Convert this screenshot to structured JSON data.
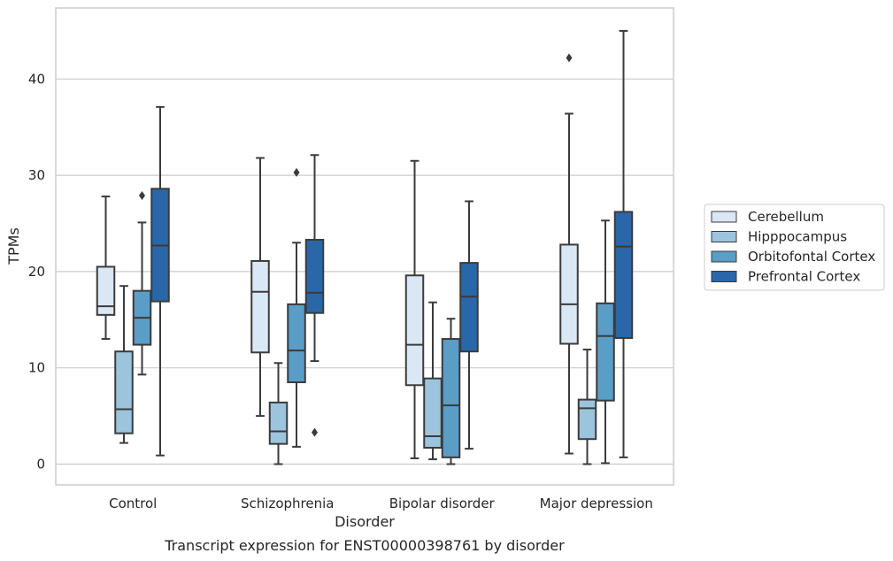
{
  "chart_data": {
    "type": "box",
    "xlabel": "Disorder",
    "ylabel": "TPMs",
    "caption": "Transcript expression for ENST00000398761 by disorder",
    "ylim": [
      -2.2,
      47.5
    ],
    "yticks": [
      0,
      10,
      20,
      30,
      40
    ],
    "grid": "horizontal",
    "legend_position": "right",
    "categories": [
      "Control",
      "Schizophrenia",
      "Bipolar disorder",
      "Major depression"
    ],
    "series": [
      {
        "name": "Cerebellum",
        "color": "#dae7f4",
        "boxes": [
          {
            "whisker_low": 13.0,
            "q1": 15.5,
            "median": 16.4,
            "q3": 20.5,
            "whisker_high": 27.8,
            "outliers": []
          },
          {
            "whisker_low": 5.0,
            "q1": 11.6,
            "median": 17.9,
            "q3": 21.1,
            "whisker_high": 31.8,
            "outliers": []
          },
          {
            "whisker_low": 0.6,
            "q1": 8.2,
            "median": 12.4,
            "q3": 19.6,
            "whisker_high": 31.5,
            "outliers": []
          },
          {
            "whisker_low": 1.1,
            "q1": 12.5,
            "median": 16.6,
            "q3": 22.8,
            "whisker_high": 36.4,
            "outliers": [
              42.2
            ]
          }
        ]
      },
      {
        "name": "Hipppocampus",
        "color": "#9cc4dd",
        "boxes": [
          {
            "whisker_low": 2.2,
            "q1": 3.2,
            "median": 5.7,
            "q3": 11.7,
            "whisker_high": 18.5,
            "outliers": []
          },
          {
            "whisker_low": 0.0,
            "q1": 2.1,
            "median": 3.4,
            "q3": 6.4,
            "whisker_high": 10.5,
            "outliers": []
          },
          {
            "whisker_low": 0.5,
            "q1": 1.7,
            "median": 2.9,
            "q3": 8.9,
            "whisker_high": 16.8,
            "outliers": []
          },
          {
            "whisker_low": 0.0,
            "q1": 2.6,
            "median": 5.8,
            "q3": 6.7,
            "whisker_high": 11.9,
            "outliers": []
          }
        ]
      },
      {
        "name": "Orbitofontal Cortex",
        "color": "#5a9dc7",
        "boxes": [
          {
            "whisker_low": 9.3,
            "q1": 12.4,
            "median": 15.2,
            "q3": 18.0,
            "whisker_high": 25.1,
            "outliers": [
              27.9
            ]
          },
          {
            "whisker_low": 1.8,
            "q1": 8.5,
            "median": 11.8,
            "q3": 16.6,
            "whisker_high": 23.0,
            "outliers": [
              30.3
            ]
          },
          {
            "whisker_low": 0.0,
            "q1": 0.7,
            "median": 6.1,
            "q3": 13.0,
            "whisker_high": 15.1,
            "outliers": []
          },
          {
            "whisker_low": 0.1,
            "q1": 6.6,
            "median": 13.3,
            "q3": 16.7,
            "whisker_high": 25.3,
            "outliers": []
          }
        ]
      },
      {
        "name": "Prefrontal Cortex",
        "color": "#2a67a8",
        "boxes": [
          {
            "whisker_low": 0.9,
            "q1": 16.9,
            "median": 22.7,
            "q3": 28.6,
            "whisker_high": 37.1,
            "outliers": []
          },
          {
            "whisker_low": 10.7,
            "q1": 15.7,
            "median": 17.8,
            "q3": 23.3,
            "whisker_high": 32.1,
            "outliers": [
              3.3
            ]
          },
          {
            "whisker_low": 1.6,
            "q1": 11.7,
            "median": 17.4,
            "q3": 20.9,
            "whisker_high": 27.3,
            "outliers": []
          },
          {
            "whisker_low": 0.7,
            "q1": 13.1,
            "median": 22.6,
            "q3": 26.2,
            "whisker_high": 45.0,
            "outliers": []
          }
        ]
      }
    ]
  }
}
